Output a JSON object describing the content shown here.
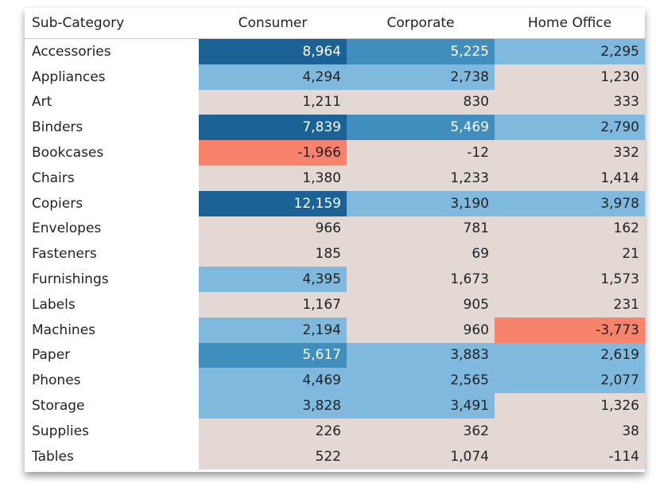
{
  "chart_data": {
    "type": "heatmap",
    "row_header": "Sub-Category",
    "columns": [
      "Consumer",
      "Corporate",
      "Home Office"
    ],
    "rows": [
      "Accessories",
      "Appliances",
      "Art",
      "Binders",
      "Bookcases",
      "Chairs",
      "Copiers",
      "Envelopes",
      "Fasteners",
      "Furnishings",
      "Labels",
      "Machines",
      "Paper",
      "Phones",
      "Storage",
      "Supplies",
      "Tables"
    ],
    "values": [
      [
        8964,
        5225,
        2295
      ],
      [
        4294,
        2738,
        1230
      ],
      [
        1211,
        830,
        333
      ],
      [
        7839,
        5469,
        2790
      ],
      [
        -1966,
        -12,
        332
      ],
      [
        1380,
        1233,
        1414
      ],
      [
        12159,
        3190,
        3978
      ],
      [
        966,
        781,
        162
      ],
      [
        185,
        69,
        21
      ],
      [
        4395,
        1673,
        1573
      ],
      [
        1167,
        905,
        231
      ],
      [
        2194,
        960,
        -3773
      ],
      [
        5617,
        3883,
        2619
      ],
      [
        4469,
        2565,
        2077
      ],
      [
        3828,
        3491,
        1326
      ],
      [
        226,
        362,
        38
      ],
      [
        522,
        1074,
        -114
      ]
    ],
    "colors": {
      "dark": "#1b6396",
      "mid": "#3f8ebd",
      "light": "#7fbade",
      "neutral": "#e4d8d4",
      "negative": "#f8836d"
    }
  }
}
